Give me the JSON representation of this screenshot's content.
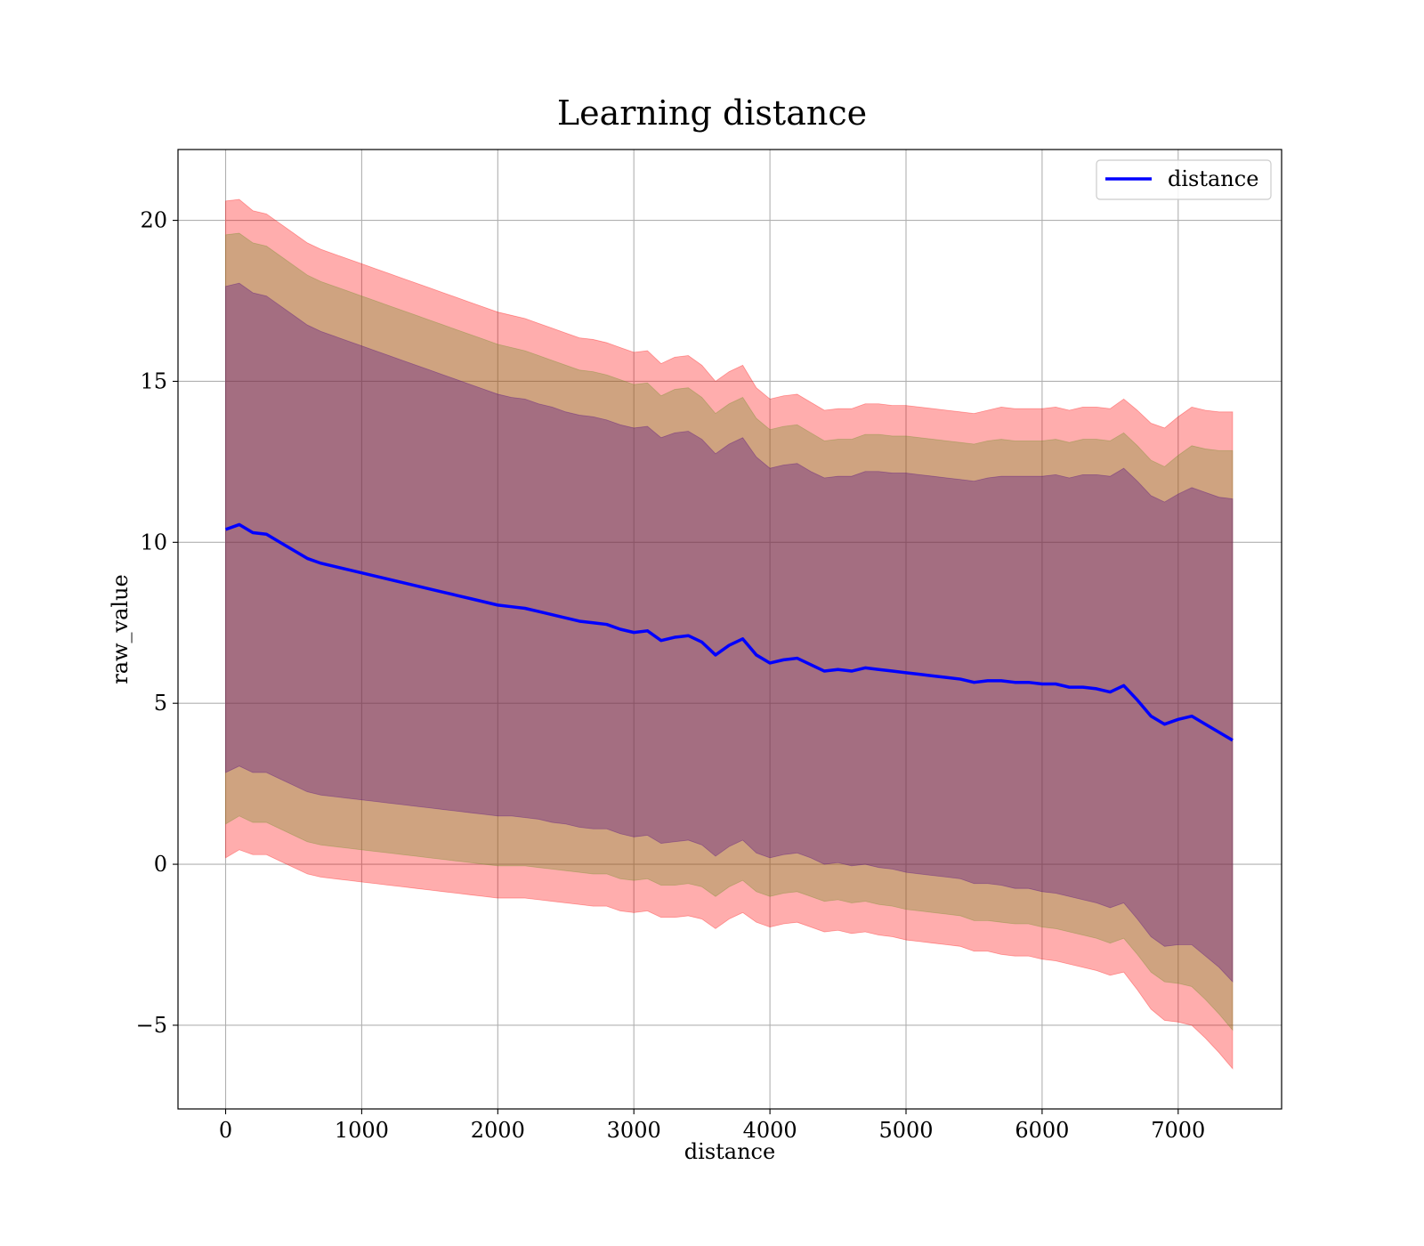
{
  "chart_data": {
    "type": "line",
    "title": "Learning distance",
    "xlabel": "distance",
    "ylabel": "raw_value",
    "xlim": [
      -350,
      7760
    ],
    "ylim": [
      -7.6,
      22.2
    ],
    "x_ticks": [
      0,
      1000,
      2000,
      3000,
      4000,
      5000,
      6000,
      7000
    ],
    "x_tick_labels": [
      "0",
      "1000",
      "2000",
      "3000",
      "4000",
      "5000",
      "6000",
      "7000"
    ],
    "y_ticks": [
      -5,
      0,
      5,
      10,
      15,
      20
    ],
    "y_tick_labels": [
      "−5",
      "0",
      "5",
      "10",
      "15",
      "20"
    ],
    "grid": true,
    "legend": {
      "position": "upper right",
      "entries": [
        "distance"
      ]
    },
    "colors": {
      "line": "#0000ff",
      "band": "#ff0000",
      "inner_band": "#4b0082",
      "mid_band": "#6b8e23"
    },
    "series": [
      {
        "name": "distance",
        "x": [
          0,
          100,
          200,
          300,
          400,
          500,
          600,
          700,
          800,
          900,
          1000,
          1100,
          1200,
          1300,
          1400,
          1500,
          1600,
          1700,
          1800,
          1900,
          2000,
          2100,
          2200,
          2300,
          2400,
          2500,
          2600,
          2700,
          2800,
          2900,
          3000,
          3100,
          3200,
          3300,
          3400,
          3500,
          3600,
          3700,
          3800,
          3900,
          4000,
          4100,
          4200,
          4300,
          4400,
          4500,
          4600,
          4700,
          4800,
          4900,
          5000,
          5100,
          5200,
          5300,
          5400,
          5500,
          5600,
          5700,
          5800,
          5900,
          6000,
          6100,
          6200,
          6300,
          6400,
          6500,
          6600,
          6700,
          6800,
          6900,
          7000,
          7100,
          7200,
          7300,
          7400
        ],
        "y": [
          10.4,
          10.55,
          10.3,
          10.25,
          10.0,
          9.75,
          9.5,
          9.35,
          9.25,
          9.15,
          9.05,
          8.95,
          8.85,
          8.75,
          8.65,
          8.55,
          8.45,
          8.35,
          8.25,
          8.15,
          8.05,
          8.0,
          7.95,
          7.85,
          7.75,
          7.65,
          7.55,
          7.5,
          7.45,
          7.3,
          7.2,
          7.25,
          6.95,
          7.05,
          7.1,
          6.9,
          6.5,
          6.8,
          7.0,
          6.5,
          6.25,
          6.35,
          6.4,
          6.2,
          6.0,
          6.05,
          6.0,
          6.1,
          6.05,
          6.0,
          5.95,
          5.9,
          5.85,
          5.8,
          5.75,
          5.65,
          5.7,
          5.7,
          5.65,
          5.65,
          5.6,
          5.6,
          5.5,
          5.5,
          5.45,
          5.35,
          5.55,
          5.1,
          4.6,
          4.35,
          4.5,
          4.6,
          4.35,
          4.1,
          3.85
        ]
      }
    ],
    "bands": [
      {
        "multiplier": 3.0,
        "half_width": [
          10.2,
          10.1,
          10.0,
          9.95,
          9.9,
          9.85,
          9.8,
          9.75,
          9.7,
          9.65,
          9.6,
          9.55,
          9.5,
          9.45,
          9.4,
          9.35,
          9.3,
          9.25,
          9.2,
          9.15,
          9.1,
          9.05,
          9.0,
          8.95,
          8.9,
          8.85,
          8.8,
          8.8,
          8.75,
          8.75,
          8.7,
          8.7,
          8.6,
          8.7,
          8.7,
          8.6,
          8.5,
          8.5,
          8.5,
          8.3,
          8.2,
          8.2,
          8.2,
          8.15,
          8.1,
          8.1,
          8.15,
          8.2,
          8.25,
          8.25,
          8.3,
          8.3,
          8.3,
          8.3,
          8.3,
          8.35,
          8.4,
          8.5,
          8.5,
          8.5,
          8.55,
          8.6,
          8.6,
          8.7,
          8.75,
          8.8,
          8.9,
          9.0,
          9.1,
          9.2,
          9.4,
          9.6,
          9.75,
          9.95,
          10.2
        ]
      },
      {
        "multiplier": 2.5,
        "half_width": [
          9.15,
          9.05,
          9.0,
          8.95,
          8.9,
          8.85,
          8.8,
          8.75,
          8.7,
          8.65,
          8.6,
          8.55,
          8.5,
          8.45,
          8.4,
          8.35,
          8.3,
          8.25,
          8.2,
          8.15,
          8.1,
          8.05,
          8.0,
          7.95,
          7.9,
          7.85,
          7.8,
          7.8,
          7.75,
          7.75,
          7.7,
          7.7,
          7.6,
          7.7,
          7.7,
          7.6,
          7.5,
          7.5,
          7.5,
          7.35,
          7.25,
          7.25,
          7.25,
          7.2,
          7.15,
          7.15,
          7.2,
          7.25,
          7.3,
          7.3,
          7.35,
          7.35,
          7.35,
          7.35,
          7.35,
          7.4,
          7.45,
          7.5,
          7.5,
          7.5,
          7.55,
          7.6,
          7.6,
          7.7,
          7.75,
          7.8,
          7.85,
          7.9,
          7.95,
          8.0,
          8.2,
          8.4,
          8.55,
          8.75,
          9.0
        ]
      },
      {
        "multiplier": 2.0,
        "half_width": [
          7.55,
          7.5,
          7.45,
          7.4,
          7.35,
          7.3,
          7.25,
          7.2,
          7.15,
          7.1,
          7.05,
          7.0,
          6.95,
          6.9,
          6.85,
          6.8,
          6.75,
          6.7,
          6.65,
          6.6,
          6.55,
          6.5,
          6.5,
          6.45,
          6.45,
          6.4,
          6.4,
          6.4,
          6.35,
          6.35,
          6.35,
          6.35,
          6.3,
          6.35,
          6.35,
          6.3,
          6.25,
          6.25,
          6.25,
          6.15,
          6.05,
          6.05,
          6.05,
          6.0,
          6.0,
          6.0,
          6.05,
          6.1,
          6.15,
          6.15,
          6.2,
          6.2,
          6.2,
          6.2,
          6.2,
          6.25,
          6.3,
          6.35,
          6.4,
          6.4,
          6.45,
          6.5,
          6.5,
          6.6,
          6.65,
          6.7,
          6.75,
          6.8,
          6.85,
          6.9,
          7.0,
          7.1,
          7.2,
          7.3,
          7.5
        ]
      }
    ]
  }
}
